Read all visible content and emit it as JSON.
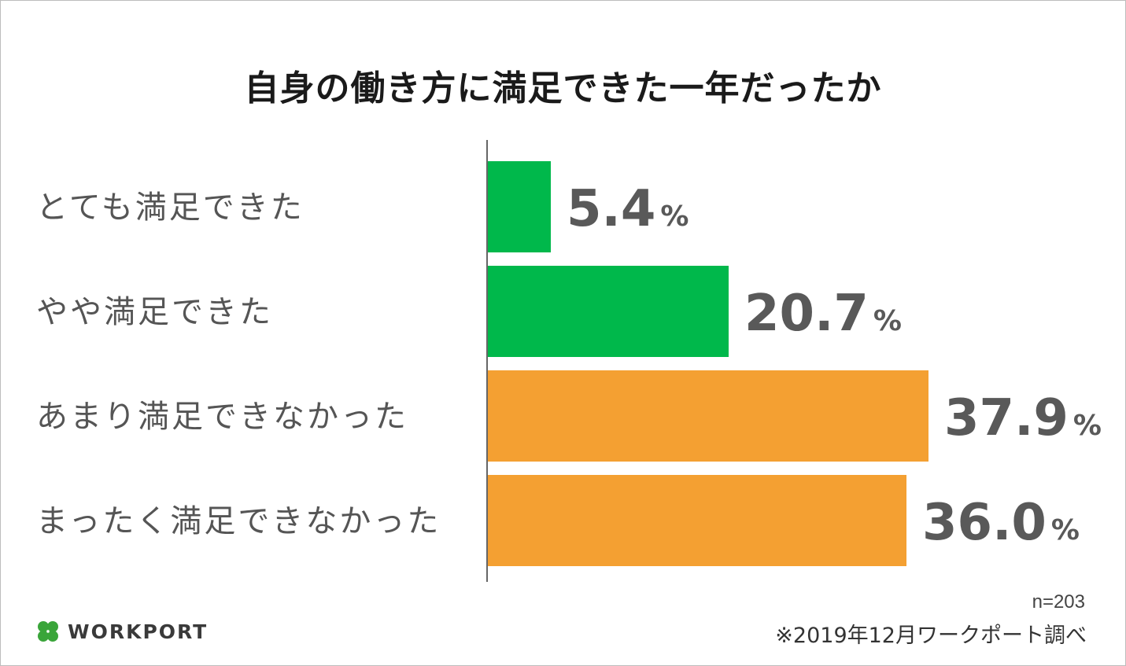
{
  "chart_data": {
    "type": "bar",
    "orientation": "horizontal",
    "title": "自身の働き方に満足できた一年だったか",
    "categories": [
      "とても満足できた",
      "やや満足できた",
      "あまり満足できなかった",
      "まったく満足できなかった"
    ],
    "values": [
      5.4,
      20.7,
      37.9,
      36.0
    ],
    "value_labels": [
      "5.4",
      "20.7",
      "37.9",
      "36.0"
    ],
    "unit": "%",
    "colors": [
      "#00b84b",
      "#00b84b",
      "#f4a032",
      "#f4a032"
    ],
    "xlim": [
      0,
      37.9
    ],
    "grid": false,
    "legend": "none"
  },
  "footer": {
    "sample_size": "n=203",
    "source": "※2019年12月ワークポート調べ",
    "logo_text": "WORKPORT"
  },
  "colors": {
    "positive": "#00b84b",
    "negative": "#f4a032",
    "axis": "#666666",
    "logo_clover": "#3aa53a"
  }
}
